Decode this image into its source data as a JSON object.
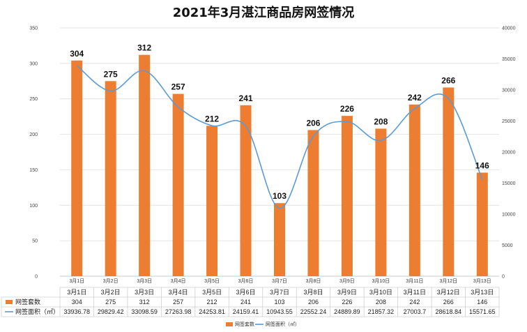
{
  "chart_data": {
    "type": "bar",
    "title": "2021年3月湛江商品房网签情况",
    "categories": [
      "3月1日",
      "3月2日",
      "3月3日",
      "3月4日",
      "3月5日",
      "3月6日",
      "3月7日",
      "3月8日",
      "3月9日",
      "3月10日",
      "3月11日",
      "3月12日",
      "3月13日"
    ],
    "series": [
      {
        "name": "网签套数",
        "type": "bar",
        "axis": "left",
        "color": "#ED7D31",
        "values": [
          304,
          275,
          312,
          257,
          212,
          241,
          103,
          206,
          226,
          208,
          242,
          266,
          146
        ],
        "display": [
          "304",
          "275",
          "312",
          "257",
          "212",
          "241",
          "103",
          "206",
          "226",
          "208",
          "242",
          "266",
          "146"
        ]
      },
      {
        "name": "网签面积（㎡）",
        "type": "line",
        "axis": "right",
        "color": "#5B9BD5",
        "values": [
          33936.78,
          29829.42,
          33098.59,
          27263.98,
          24253.81,
          24159.41,
          10943.55,
          22552.24,
          24889.89,
          21857.32,
          27003.7,
          28618.84,
          15571.65
        ],
        "display": [
          "33936.78",
          "29829.42",
          "33098.59",
          "27263.98",
          "24253.81",
          "24159.41",
          "10943.55",
          "22552.24",
          "24889.89",
          "21857.32",
          "27003.7",
          "28618.84",
          "15571.65"
        ]
      }
    ],
    "ylim_left": [
      0,
      350
    ],
    "yticks_left": [
      "0",
      "50",
      "100",
      "150",
      "200",
      "250",
      "300",
      "350"
    ],
    "ylim_right": [
      0,
      40000
    ],
    "yticks_right": [
      "0",
      "5000",
      "10000",
      "15000",
      "20000",
      "25000",
      "30000",
      "35000",
      "40000"
    ],
    "grid": true,
    "legend": "bottom",
    "data_table": true
  }
}
